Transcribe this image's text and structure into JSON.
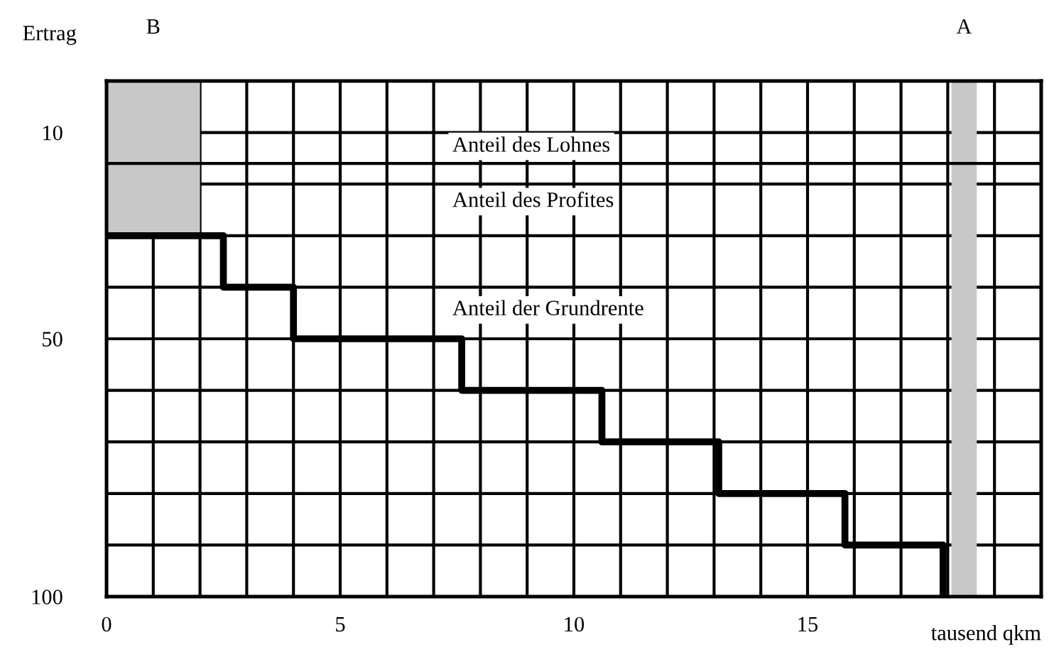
{
  "chart_data": {
    "type": "step",
    "xlabel": "tausend qkm",
    "ylabel": "Ertrag",
    "xlim": [
      0,
      20
    ],
    "ylim": [
      100,
      0
    ],
    "xticks": [
      0,
      {
        "value": 1,
        "label": null
      },
      {
        "value": 2,
        "label": null
      },
      {
        "value": 3,
        "label": null
      },
      {
        "value": 4,
        "label": null
      },
      5,
      {
        "value": 6,
        "label": null
      },
      {
        "value": 7,
        "label": null
      },
      {
        "value": 8,
        "label": null
      },
      {
        "value": 9,
        "label": null
      },
      10,
      {
        "value": 11,
        "label": null
      },
      {
        "value": 12,
        "label": null
      },
      {
        "value": 13,
        "label": null
      },
      {
        "value": 14,
        "label": null
      },
      15,
      {
        "value": 16,
        "label": null
      },
      {
        "value": 17,
        "label": null
      },
      {
        "value": 18,
        "label": null
      },
      {
        "value": 19,
        "label": null
      },
      {
        "value": 20,
        "label": null
      }
    ],
    "yticks": [
      {
        "value": 0,
        "label": null
      },
      10,
      {
        "value": 20,
        "label": null
      },
      {
        "value": 30,
        "label": null
      },
      {
        "value": 40,
        "label": null
      },
      50,
      {
        "value": 60,
        "label": null
      },
      {
        "value": 70,
        "label": null
      },
      {
        "value": 80,
        "label": null
      },
      {
        "value": 90,
        "label": null
      },
      100
    ],
    "grid": true,
    "series": [
      {
        "type": "area",
        "name": "B",
        "color": "#c8c8c8",
        "x": [
          0,
          2
        ],
        "values": [
          30,
          30
        ]
      },
      {
        "color": "#000000",
        "line_style": "solid",
        "x": [
          0,
          2.5,
          4.0,
          7.6,
          10.6,
          13.1,
          15.8,
          17.9
        ],
        "values": [
          30,
          40,
          50,
          60,
          70,
          80,
          90,
          100
        ]
      }
    ],
    "ref_lines": [
      {
        "axis": "y",
        "value": 16,
        "color": "#000000"
      }
    ],
    "bands": [
      {
        "axis": "x",
        "from": 18.1,
        "to": 18.6,
        "label": "A",
        "color": "#c8c8c8"
      }
    ],
    "annotations": [
      "Anteil des Lohnes",
      "Anteil des Profites",
      "Anteil der Grundrente"
    ]
  }
}
